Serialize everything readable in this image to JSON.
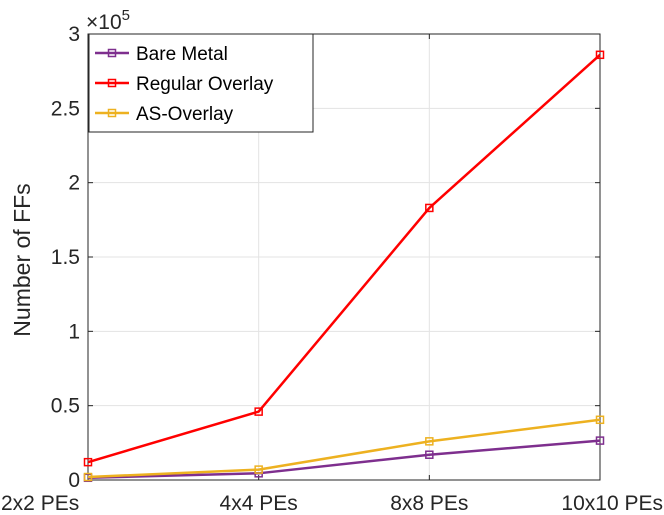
{
  "chart_data": {
    "type": "line",
    "title": "",
    "xlabel": "",
    "ylabel": "Number of FFs",
    "y_multiplier": {
      "base": "×10",
      "exponent": "5"
    },
    "categories": [
      "2x2 PEs",
      "4x4 PEs",
      "8x8 PEs",
      "10x10 PEs"
    ],
    "ylim": [
      0,
      3
    ],
    "yticks": [
      0,
      0.5,
      1,
      1.5,
      2,
      2.5,
      3
    ],
    "ytick_labels": [
      "0",
      "0.5",
      "1",
      "1.5",
      "2",
      "2.5",
      "3"
    ],
    "grid": true,
    "legend_position": "top-left",
    "series": [
      {
        "name": "Bare Metal",
        "color": "#7E2F8E",
        "values": [
          0.015,
          0.045,
          0.17,
          0.265
        ]
      },
      {
        "name": "Regular Overlay",
        "color": "#FF0000",
        "values": [
          0.12,
          0.46,
          1.83,
          2.86
        ]
      },
      {
        "name": "AS-Overlay",
        "color": "#EDB120",
        "values": [
          0.02,
          0.07,
          0.26,
          0.405
        ]
      }
    ]
  }
}
